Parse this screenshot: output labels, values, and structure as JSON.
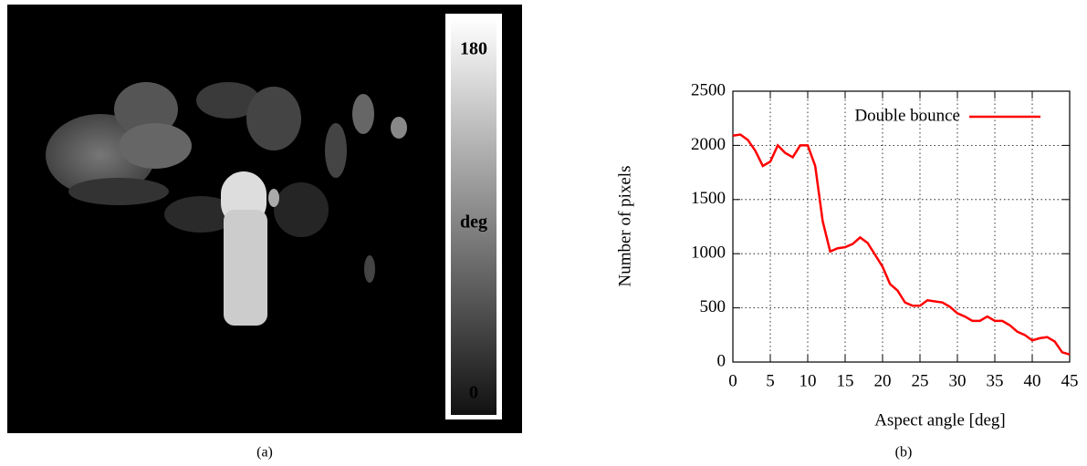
{
  "chart_data": [
    {
      "type": "image",
      "caption": "(a)",
      "colorbar": {
        "label": "deg",
        "lim": [
          0,
          180
        ],
        "ticks": [
          180,
          0
        ]
      }
    },
    {
      "type": "line",
      "caption": "(b)",
      "xlabel": "Aspect angle [deg]",
      "ylabel": "Number of pixels",
      "x": [
        0,
        1,
        2,
        3,
        4,
        5,
        6,
        7,
        8,
        9,
        10,
        11,
        12,
        13,
        14,
        15,
        16,
        17,
        18,
        19,
        20,
        21,
        22,
        23,
        24,
        25,
        26,
        27,
        28,
        29,
        30,
        31,
        32,
        33,
        34,
        35,
        36,
        37,
        38,
        39,
        40,
        41,
        42,
        43,
        44,
        45
      ],
      "series": [
        {
          "name": "Double bounce",
          "color": "#ff0000",
          "values": [
            2090,
            2100,
            2050,
            1950,
            1810,
            1850,
            2000,
            1930,
            1890,
            2000,
            2000,
            1810,
            1300,
            1020,
            1050,
            1060,
            1090,
            1150,
            1100,
            990,
            880,
            720,
            660,
            550,
            520,
            520,
            570,
            560,
            550,
            510,
            450,
            420,
            380,
            380,
            420,
            380,
            380,
            340,
            280,
            250,
            200,
            220,
            230,
            190,
            90,
            70
          ]
        }
      ],
      "xlim": [
        0,
        45
      ],
      "ylim": [
        0,
        2500
      ],
      "xticks": [
        0,
        5,
        10,
        15,
        20,
        25,
        30,
        35,
        40,
        45
      ],
      "yticks": [
        0,
        500,
        1000,
        1500,
        2000,
        2500
      ],
      "grid": true,
      "legend": "top-right"
    }
  ]
}
